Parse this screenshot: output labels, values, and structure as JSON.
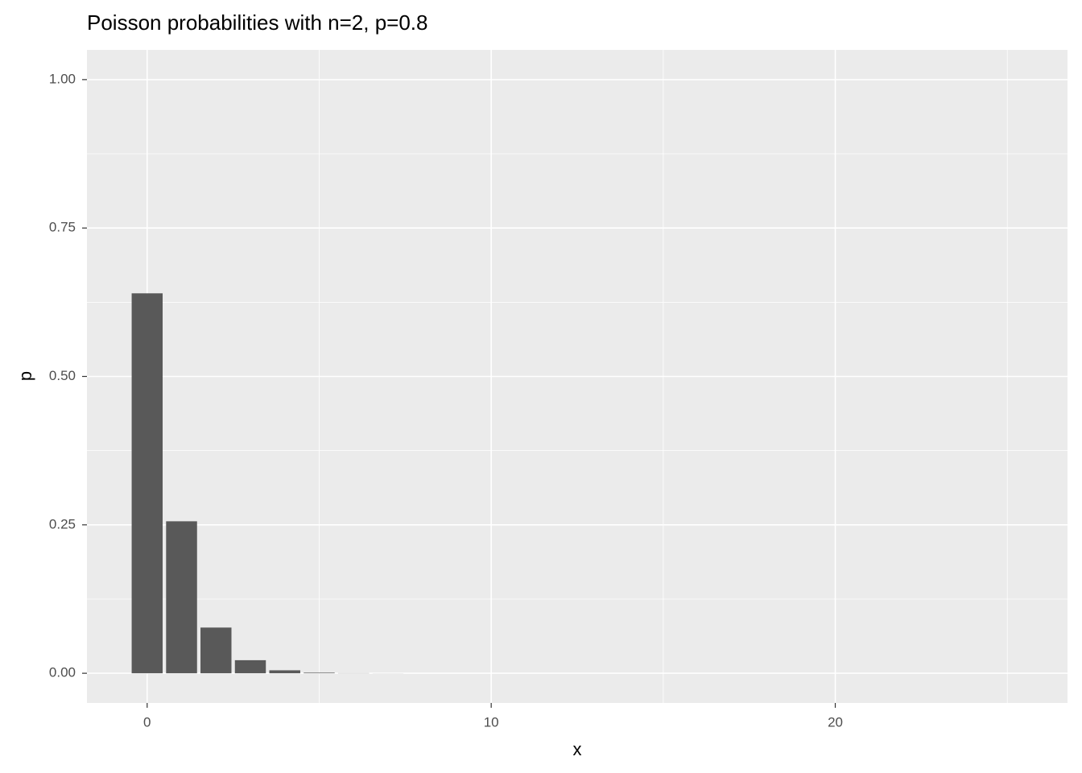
{
  "chart_data": {
    "type": "bar",
    "title": "Poisson probabilities with n=2, p=0.8",
    "x_label": "x",
    "y_label": "p",
    "x": [
      0,
      1,
      2,
      3,
      4,
      5,
      6,
      7,
      8,
      9,
      10,
      11,
      12,
      13,
      14,
      15,
      16,
      17,
      18,
      19,
      20,
      21,
      22,
      23,
      24,
      25
    ],
    "values": [
      0.64,
      0.256,
      0.077,
      0.022,
      0.005,
      0.001,
      0.0003,
      0.0001,
      0,
      0,
      0,
      0,
      0,
      0,
      0,
      0,
      0,
      0,
      0,
      0,
      0,
      0,
      0,
      0,
      0,
      0
    ],
    "color": "#595959",
    "xlim": [
      -1.75,
      26.75
    ],
    "xticks": [
      0,
      10,
      20
    ],
    "xminor": [
      5,
      15,
      25
    ],
    "ylim": [
      -0.05,
      1.05
    ],
    "yticks": [
      {
        "value": 0,
        "label": "0.00"
      },
      {
        "value": 0.25,
        "label": "0.25"
      },
      {
        "value": 0.5,
        "label": "0.50"
      },
      {
        "value": 0.75,
        "label": "0.75"
      },
      {
        "value": 1,
        "label": "1.00"
      }
    ],
    "yminor": [
      0.125,
      0.375,
      0.625,
      0.875
    ],
    "grid": true
  }
}
